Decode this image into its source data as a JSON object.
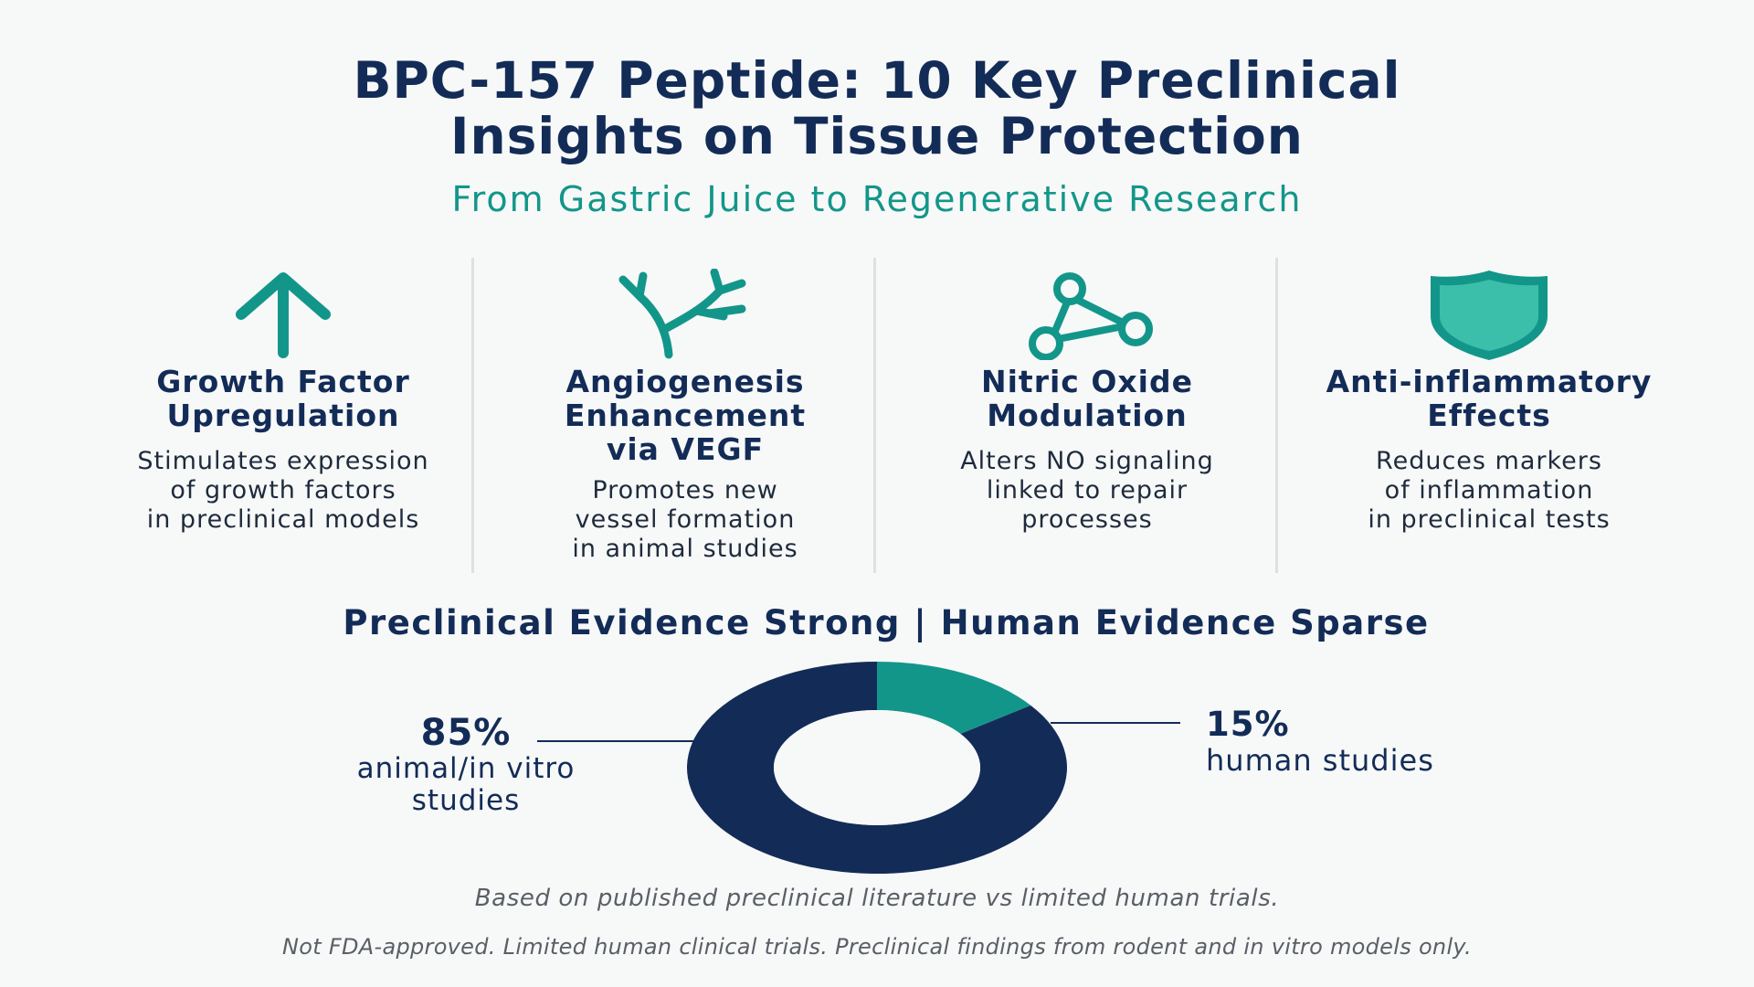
{
  "header": {
    "title_lines": [
      "BPC-157 Peptide: 10 Key Preclinical",
      "Insights on Tissue Protection"
    ],
    "subtitle": "From Gastric Juice to Regenerative Research"
  },
  "colors": {
    "navy": "#132c57",
    "teal": "#13968a",
    "text": "#1e2b3c",
    "muted": "#5a5f66"
  },
  "features": [
    {
      "icon": "arrow-up-icon",
      "title_lines": [
        "Growth Factor",
        "Upregulation"
      ],
      "desc_lines": [
        "Stimulates expression",
        "of growth factors",
        "in preclinical models"
      ]
    },
    {
      "icon": "branching-vessel-icon",
      "title_lines": [
        "Angiogenesis",
        "Enhancement",
        "via VEGF"
      ],
      "desc_lines": [
        "Promotes new",
        "vessel formation",
        "in animal studies"
      ]
    },
    {
      "icon": "molecule-icon",
      "title_lines": [
        "Nitric Oxide",
        "Modulation"
      ],
      "desc_lines": [
        "Alters NO signaling",
        "linked to repair",
        "processes"
      ]
    },
    {
      "icon": "shield-icon",
      "title_lines": [
        "Anti-inflammatory",
        "Effects"
      ],
      "desc_lines": [
        "Reduces markers",
        "of inflammation",
        "in preclinical tests"
      ]
    }
  ],
  "evidence": {
    "heading": "Preclinical Evidence Strong | Human Evidence Sparse",
    "left_percent": "85%",
    "left_label_lines": [
      "animal/in vitro",
      "studies"
    ],
    "right_percent": "15%",
    "right_label": "human studies"
  },
  "chart_data": {
    "type": "pie",
    "donut": true,
    "categories": [
      "animal/in vitro studies",
      "human studies"
    ],
    "values": [
      85,
      15
    ],
    "colors": [
      "#132c57",
      "#13968a"
    ],
    "start_angle_deg": 0
  },
  "footnotes": {
    "basis": "Based on published preclinical literature vs limited human trials.",
    "disclaimer": "Not FDA-approved. Limited human clinical trials. Preclinical findings from rodent and in vitro models only."
  }
}
